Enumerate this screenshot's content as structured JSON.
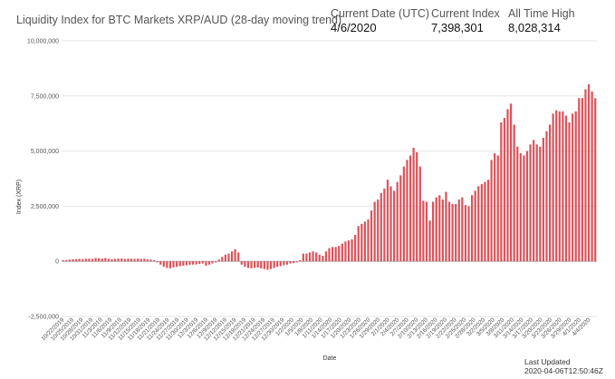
{
  "header": {
    "title": "Liquidity Index for BTC Markets XRP/AUD (28-day moving trend)",
    "current_date_label": "Current Date (UTC)",
    "current_date_value": "4/6/2020",
    "current_index_label": "Current Index",
    "current_index_value": "7,398,301",
    "ath_label": "All Time High",
    "ath_value": "8,028,314"
  },
  "footer": {
    "last_updated_label": "Last Updated",
    "last_updated_value": "2020-04-06T12:50:46Z"
  },
  "colors": {
    "bar": "#d9545b",
    "grid": "#e6e6e6",
    "zero": "#b0b0b0"
  },
  "chart_data": {
    "type": "bar",
    "title": "Liquidity Index for BTC Markets XRP/AUD (28-day moving trend)",
    "xlabel": "Date",
    "ylabel": "Index (XRP)",
    "ylim": [
      -2500000,
      10000000
    ],
    "y_ticks": [
      10000000,
      7500000,
      5000000,
      2500000,
      0,
      -2500000
    ],
    "y_tick_labels": [
      "10,000,000",
      "7,500,000",
      "5,000,000",
      "2,500,000",
      "0",
      "-2,500,000"
    ],
    "x_tick_labels": [
      "10/22/2019",
      "10/25/2019",
      "10/28/2019",
      "10/31/2019",
      "11/3/2019",
      "11/6/2019",
      "11/9/2019",
      "11/12/2019",
      "11/15/2019",
      "11/18/2019",
      "11/21/2019",
      "11/24/2019",
      "11/27/2019",
      "11/30/2019",
      "12/3/2019",
      "12/6/2019",
      "12/9/2019",
      "12/12/2019",
      "12/15/2019",
      "12/18/2019",
      "12/21/2019",
      "12/24/2019",
      "12/27/2019",
      "12/30/2019",
      "1/2/2020",
      "1/5/2020",
      "1/8/2020",
      "1/11/2020",
      "1/14/2020",
      "1/17/2020",
      "1/20/2020",
      "1/23/2020",
      "1/26/2020",
      "1/29/2020",
      "2/1/2020",
      "2/4/2020",
      "2/7/2020",
      "2/10/2020",
      "2/13/2020",
      "2/16/2020",
      "2/19/2020",
      "2/22/2020",
      "2/25/2020",
      "2/28/2020",
      "3/2/2020",
      "3/5/2020",
      "3/8/2020",
      "3/11/2020",
      "3/14/2020",
      "3/17/2020",
      "3/20/2020",
      "3/23/2020",
      "3/26/2020",
      "3/29/2020",
      "4/1/2020",
      "4/4/2020"
    ],
    "values": [
      50000,
      60000,
      80000,
      90000,
      100000,
      110000,
      100000,
      110000,
      120000,
      110000,
      150000,
      140000,
      120000,
      150000,
      120000,
      90000,
      110000,
      120000,
      130000,
      110000,
      120000,
      120000,
      110000,
      120000,
      110000,
      120000,
      90000,
      80000,
      50000,
      -50000,
      -150000,
      -250000,
      -300000,
      -320000,
      -280000,
      -250000,
      -220000,
      -200000,
      -180000,
      -160000,
      -150000,
      -140000,
      -120000,
      -100000,
      -200000,
      -150000,
      -100000,
      -50000,
      80000,
      200000,
      300000,
      350000,
      450000,
      550000,
      400000,
      -150000,
      -250000,
      -300000,
      -320000,
      -300000,
      -280000,
      -320000,
      -350000,
      -380000,
      -350000,
      -300000,
      -250000,
      -220000,
      -180000,
      -150000,
      -100000,
      -80000,
      -50000,
      50000,
      350000,
      350000,
      400000,
      450000,
      400000,
      300000,
      250000,
      450000,
      600000,
      650000,
      650000,
      700000,
      800000,
      900000,
      950000,
      1000000,
      1200000,
      1600000,
      1700000,
      1800000,
      1900000,
      2300000,
      2700000,
      2800000,
      3100000,
      3300000,
      3700000,
      3400000,
      3200000,
      3600000,
      3900000,
      4300000,
      4600000,
      4800000,
      5150000,
      4950000,
      4300000,
      2750000,
      2700000,
      1850000,
      2700000,
      2900000,
      3000000,
      2800000,
      3150000,
      2700000,
      2600000,
      2600000,
      2800000,
      2900000,
      2550000,
      2500000,
      3000000,
      3200000,
      3400000,
      3500000,
      3600000,
      3700000,
      4600000,
      4900000,
      4800000,
      6300000,
      6500000,
      6900000,
      7150000,
      6200000,
      5200000,
      4900000,
      4800000,
      5000000,
      5300000,
      5500000,
      5300000,
      5200000,
      5600000,
      5900000,
      6200000,
      6700000,
      6850000,
      6800000,
      6800000,
      6600000,
      6300000,
      6700000,
      6800000,
      7400000,
      7400000,
      7800000,
      8028314,
      7700000,
      7398301
    ]
  }
}
